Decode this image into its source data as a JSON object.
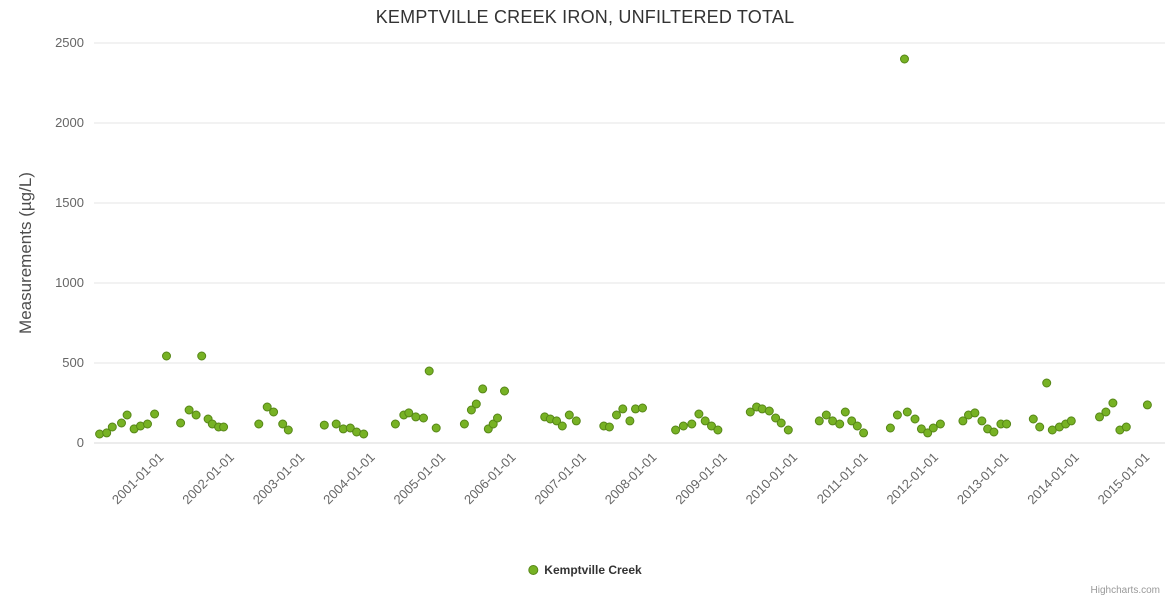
{
  "credits": {
    "label": "Highcharts.com"
  },
  "chart_data": {
    "type": "scatter",
    "title": "KEMPTVILLE CREEK IRON, UNFILTERED TOTAL",
    "xlabel": "",
    "ylabel": "Measurements (µg/L)",
    "ylim": [
      0,
      2500
    ],
    "yticks": [
      0,
      500,
      1000,
      1500,
      2000,
      2500
    ],
    "xlim": [
      2000.0,
      2015.21
    ],
    "xticks": [
      {
        "value": 2001,
        "label": "2001-01-01"
      },
      {
        "value": 2002,
        "label": "2002-01-01"
      },
      {
        "value": 2003,
        "label": "2003-01-01"
      },
      {
        "value": 2004,
        "label": "2004-01-01"
      },
      {
        "value": 2005,
        "label": "2005-01-01"
      },
      {
        "value": 2006,
        "label": "2006-01-01"
      },
      {
        "value": 2007,
        "label": "2007-01-01"
      },
      {
        "value": 2008,
        "label": "2008-01-01"
      },
      {
        "value": 2009,
        "label": "2009-01-01"
      },
      {
        "value": 2010,
        "label": "2010-01-01"
      },
      {
        "value": 2011,
        "label": "2011-01-01"
      },
      {
        "value": 2012,
        "label": "2012-01-01"
      },
      {
        "value": 2013,
        "label": "2013-01-01"
      },
      {
        "value": 2014,
        "label": "2014-01-01"
      },
      {
        "value": 2015,
        "label": "2015-01-01"
      }
    ],
    "grid": "horizontal",
    "gridline_color": "#e6e6e6",
    "legend_position": "bottom-center",
    "series": [
      {
        "name": "Kemptville Creek",
        "color": "#77b224",
        "marker_stroke": "#568617",
        "points": [
          [
            2000.08,
            56
          ],
          [
            2000.18,
            63
          ],
          [
            2000.26,
            100
          ],
          [
            2000.39,
            125
          ],
          [
            2000.47,
            175
          ],
          [
            2000.57,
            88
          ],
          [
            2000.66,
            106
          ],
          [
            2000.76,
            119
          ],
          [
            2000.86,
            181
          ],
          [
            2001.03,
            544
          ],
          [
            2001.23,
            125
          ],
          [
            2001.35,
            206
          ],
          [
            2001.45,
            175
          ],
          [
            2001.53,
            544
          ],
          [
            2001.62,
            150
          ],
          [
            2001.68,
            119
          ],
          [
            2001.77,
            100
          ],
          [
            2001.84,
            100
          ],
          [
            2002.34,
            119
          ],
          [
            2002.46,
            225
          ],
          [
            2002.55,
            194
          ],
          [
            2002.68,
            119
          ],
          [
            2002.76,
            81
          ],
          [
            2003.27,
            112
          ],
          [
            2003.44,
            119
          ],
          [
            2003.54,
            88
          ],
          [
            2003.64,
            94
          ],
          [
            2003.73,
            69
          ],
          [
            2003.83,
            56
          ],
          [
            2004.28,
            119
          ],
          [
            2004.4,
            175
          ],
          [
            2004.47,
            188
          ],
          [
            2004.57,
            163
          ],
          [
            2004.68,
            156
          ],
          [
            2004.76,
            450
          ],
          [
            2004.86,
            94
          ],
          [
            2005.26,
            119
          ],
          [
            2005.36,
            206
          ],
          [
            2005.43,
            244
          ],
          [
            2005.52,
            338
          ],
          [
            2005.6,
            88
          ],
          [
            2005.67,
            119
          ],
          [
            2005.73,
            156
          ],
          [
            2005.83,
            325
          ],
          [
            2006.4,
            163
          ],
          [
            2006.48,
            150
          ],
          [
            2006.57,
            138
          ],
          [
            2006.65,
            106
          ],
          [
            2006.75,
            175
          ],
          [
            2006.85,
            138
          ],
          [
            2007.24,
            106
          ],
          [
            2007.32,
            100
          ],
          [
            2007.42,
            175
          ],
          [
            2007.51,
            213
          ],
          [
            2007.61,
            138
          ],
          [
            2007.69,
            213
          ],
          [
            2007.79,
            219
          ],
          [
            2008.26,
            81
          ],
          [
            2008.37,
            106
          ],
          [
            2008.49,
            119
          ],
          [
            2008.59,
            181
          ],
          [
            2008.68,
            138
          ],
          [
            2008.77,
            106
          ],
          [
            2008.86,
            81
          ],
          [
            2009.32,
            194
          ],
          [
            2009.41,
            225
          ],
          [
            2009.49,
            213
          ],
          [
            2009.59,
            200
          ],
          [
            2009.68,
            156
          ],
          [
            2009.76,
            125
          ],
          [
            2009.86,
            81
          ],
          [
            2010.3,
            138
          ],
          [
            2010.4,
            175
          ],
          [
            2010.49,
            138
          ],
          [
            2010.59,
            119
          ],
          [
            2010.67,
            194
          ],
          [
            2010.76,
            138
          ],
          [
            2010.84,
            106
          ],
          [
            2010.93,
            63
          ],
          [
            2011.31,
            94
          ],
          [
            2011.41,
            175
          ],
          [
            2011.51,
            2400
          ],
          [
            2011.55,
            194
          ],
          [
            2011.66,
            150
          ],
          [
            2011.75,
            88
          ],
          [
            2011.84,
            63
          ],
          [
            2011.92,
            94
          ],
          [
            2012.02,
            119
          ],
          [
            2012.34,
            138
          ],
          [
            2012.42,
            175
          ],
          [
            2012.51,
            188
          ],
          [
            2012.61,
            138
          ],
          [
            2012.69,
            88
          ],
          [
            2012.78,
            69
          ],
          [
            2012.88,
            119
          ],
          [
            2012.96,
            119
          ],
          [
            2013.34,
            150
          ],
          [
            2013.43,
            100
          ],
          [
            2013.53,
            375
          ],
          [
            2013.61,
            81
          ],
          [
            2013.71,
            100
          ],
          [
            2013.8,
            119
          ],
          [
            2013.88,
            138
          ],
          [
            2014.28,
            163
          ],
          [
            2014.37,
            194
          ],
          [
            2014.47,
            250
          ],
          [
            2014.57,
            81
          ],
          [
            2014.66,
            100
          ],
          [
            2014.96,
            238
          ]
        ]
      }
    ]
  }
}
